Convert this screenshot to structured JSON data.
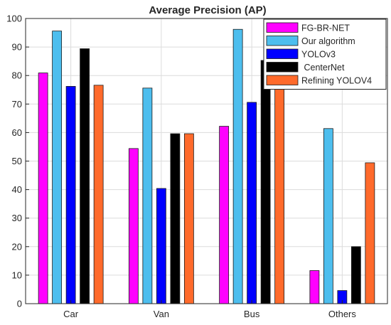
{
  "chart_data": {
    "type": "bar",
    "title": "Average Precision (AP)",
    "xlabel": "",
    "ylabel": "",
    "categories": [
      "Car",
      "Van",
      "Bus",
      "Others"
    ],
    "ylim": [
      0,
      100
    ],
    "yticks": [
      0,
      10,
      20,
      30,
      40,
      50,
      60,
      70,
      80,
      90,
      100
    ],
    "grid": true,
    "legend_position": "top-right",
    "series": [
      {
        "name": "FG-BR-NET",
        "color": "#ff00ff",
        "values": [
          80.9,
          54.4,
          62.2,
          11.6
        ]
      },
      {
        "name": "Our algorithm",
        "color": "#4dbeee",
        "values": [
          95.6,
          75.6,
          96.2,
          61.4
        ]
      },
      {
        "name": "YOLOv3",
        "color": "#0000ff",
        "values": [
          76.2,
          40.4,
          70.6,
          4.6
        ]
      },
      {
        "name": " CenterNet",
        "color": "#000000",
        "values": [
          89.4,
          59.6,
          85.3,
          20.0
        ]
      },
      {
        "name": "Refining YOLOV4",
        "color": "#ff6a2b",
        "values": [
          76.6,
          59.6,
          77.0,
          49.4
        ]
      }
    ]
  }
}
